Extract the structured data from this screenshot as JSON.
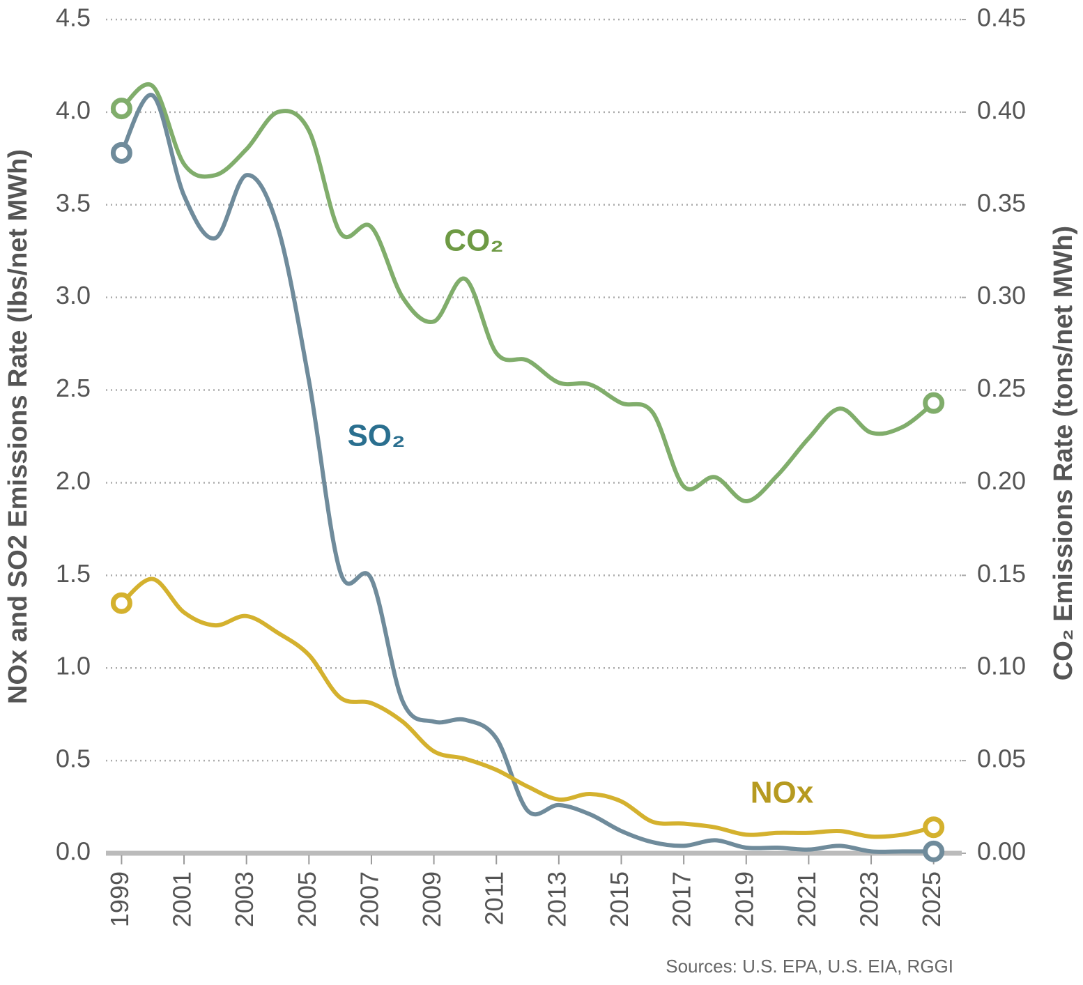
{
  "chart_data": {
    "type": "line",
    "y_label": "NOx and SO2 Emissions Rate (lbs/net MWh)",
    "y2_label": "CO₂ Emissions Rate (tons/net MWh)",
    "source": "Sources: U.S. EPA, U.S. EIA, RGGI",
    "x": [
      1999,
      2000,
      2001,
      2002,
      2003,
      2004,
      2005,
      2006,
      2007,
      2008,
      2009,
      2010,
      2011,
      2012,
      2013,
      2014,
      2015,
      2016,
      2017,
      2018,
      2019,
      2020,
      2021,
      2022,
      2023,
      2024,
      2025
    ],
    "xlim": [
      1998.5,
      2025.9
    ],
    "xticks": [
      1999,
      2001,
      2003,
      2005,
      2007,
      2009,
      2011,
      2013,
      2015,
      2017,
      2019,
      2021,
      2023,
      2025
    ],
    "ylim": [
      0,
      4.5
    ],
    "yticks": [
      {
        "value": 0,
        "label": "0.0"
      },
      {
        "value": 0.5,
        "label": "0.5"
      },
      {
        "value": 1,
        "label": "1.0"
      },
      {
        "value": 1.5,
        "label": "1.5"
      },
      {
        "value": 2,
        "label": "2.0"
      },
      {
        "value": 2.5,
        "label": "2.5"
      },
      {
        "value": 3,
        "label": "3.0"
      },
      {
        "value": 3.5,
        "label": "3.5"
      },
      {
        "value": 4,
        "label": "4.0"
      },
      {
        "value": 4.5,
        "label": "4.5"
      }
    ],
    "y2lim": [
      0,
      0.45
    ],
    "y2ticks": [
      {
        "value": 0,
        "label": "0.00"
      },
      0.05,
      {
        "value": 0.1,
        "label": "0.10"
      },
      0.15,
      {
        "value": 0.2,
        "label": "0.20"
      },
      0.25,
      {
        "value": 0.3,
        "label": "0.30"
      },
      0.35,
      {
        "value": 0.4,
        "label": "0.40"
      },
      0.45
    ],
    "grid": true,
    "series": [
      {
        "name": "CO₂",
        "color": "#80ad6b",
        "label_color": "#6e9a44",
        "axis": "y2",
        "values": [
          0.402,
          0.414,
          0.372,
          0.366,
          0.38,
          0.4,
          0.39,
          0.335,
          0.338,
          0.3,
          0.287,
          0.31,
          0.27,
          0.266,
          0.254,
          0.253,
          0.243,
          0.238,
          0.198,
          0.203,
          0.19,
          0.204,
          0.224,
          0.24,
          0.227,
          0.23,
          0.243
        ]
      },
      {
        "name": "SO₂",
        "color": "#6f8b9b",
        "label_color": "#2a6f8f",
        "values": [
          3.78,
          4.09,
          3.55,
          3.32,
          3.66,
          3.38,
          2.55,
          1.52,
          1.48,
          0.82,
          0.71,
          0.72,
          0.62,
          0.23,
          0.26,
          0.21,
          0.12,
          0.06,
          0.04,
          0.07,
          0.03,
          0.03,
          0.02,
          0.04,
          0.01,
          0.01,
          0.01
        ]
      },
      {
        "name": "NOx",
        "color": "#d4b12e",
        "label_color": "#b69a20",
        "values": [
          1.35,
          1.48,
          1.3,
          1.23,
          1.28,
          1.19,
          1.07,
          0.84,
          0.81,
          0.71,
          0.55,
          0.51,
          0.45,
          0.36,
          0.29,
          0.32,
          0.28,
          0.17,
          0.16,
          0.14,
          0.1,
          0.11,
          0.11,
          0.12,
          0.09,
          0.1,
          0.14
        ]
      }
    ]
  }
}
